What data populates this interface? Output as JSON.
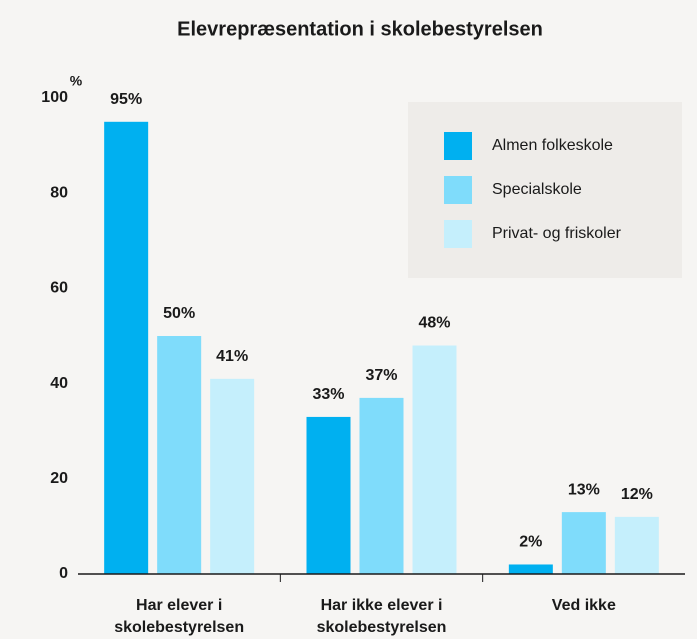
{
  "chart_data": {
    "type": "bar",
    "title": "Elevrepræsentation i skolebestyrelsen",
    "y_label": "%",
    "categories": [
      "Har elever i skolebestyrelsen",
      "Har ikke elever i skolebestyrelsen",
      "Ved ikke"
    ],
    "series": [
      {
        "name": "Almen folkeskole",
        "color": "#00b0f0",
        "values": [
          95,
          33,
          2
        ],
        "value_labels": [
          "95%",
          "33%",
          "2%"
        ]
      },
      {
        "name": "Specialskole",
        "color": "#7fdcfb",
        "values": [
          50,
          37,
          13
        ],
        "value_labels": [
          "50%",
          "37%",
          "13%"
        ]
      },
      {
        "name": "Privat- og friskoler",
        "color": "#c5effc",
        "values": [
          41,
          48,
          12
        ],
        "value_labels": [
          "41%",
          "48%",
          "12%"
        ]
      }
    ],
    "ylim": [
      0,
      100
    ],
    "yticks": [
      0,
      20,
      40,
      60,
      80,
      100
    ],
    "legend": "upper right"
  }
}
